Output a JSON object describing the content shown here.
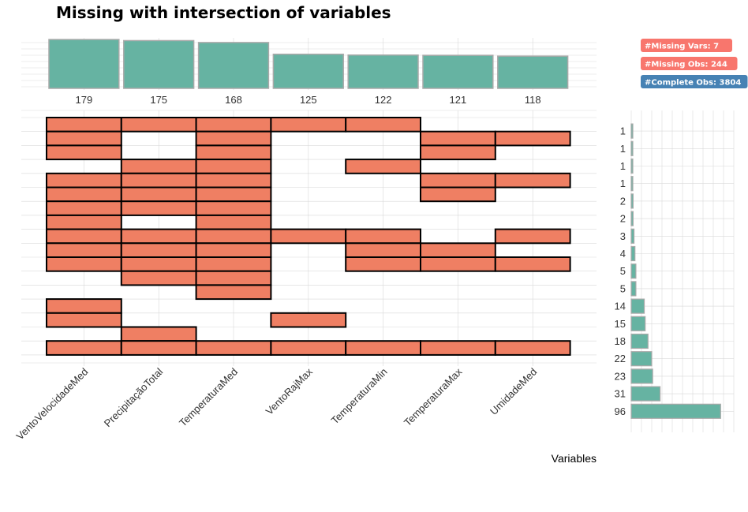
{
  "chart_data": {
    "type": "upset",
    "title": "Missing with intersection of variables",
    "xlabel": "Variables",
    "variables": [
      "VentoVelocidadeMed",
      "PrecipitaçãoTotal",
      "TemperaturaMed",
      "VentoRajMax",
      "TemperaturaMin",
      "TemperaturaMax",
      "UmidadeMed"
    ],
    "missing_counts": [
      179,
      175,
      168,
      125,
      122,
      121,
      118
    ],
    "intersections": [
      {
        "count": 1,
        "vars": [
          0,
          1,
          2,
          3,
          4
        ]
      },
      {
        "count": 1,
        "vars": [
          0,
          2,
          5,
          6
        ]
      },
      {
        "count": 1,
        "vars": [
          0,
          2,
          5
        ]
      },
      {
        "count": 1,
        "vars": [
          1,
          2,
          4
        ]
      },
      {
        "count": 2,
        "vars": [
          0,
          1,
          2,
          5,
          6
        ]
      },
      {
        "count": 2,
        "vars": [
          0,
          1,
          2,
          5
        ]
      },
      {
        "count": 3,
        "vars": [
          0,
          1,
          2
        ]
      },
      {
        "count": 4,
        "vars": [
          0,
          2
        ]
      },
      {
        "count": 5,
        "vars": [
          0,
          1,
          2,
          3,
          4,
          6
        ]
      },
      {
        "count": 5,
        "vars": [
          0,
          1,
          2,
          4,
          5
        ]
      },
      {
        "count": 14,
        "vars": [
          0,
          1,
          2,
          4,
          5,
          6
        ]
      },
      {
        "count": 15,
        "vars": [
          1,
          2
        ]
      },
      {
        "count": 18,
        "vars": [
          2
        ]
      },
      {
        "count": 22,
        "vars": [
          0
        ]
      },
      {
        "count": 23,
        "vars": [
          0,
          3
        ]
      },
      {
        "count": 31,
        "vars": [
          1
        ]
      },
      {
        "count": 96,
        "vars": [
          0,
          1,
          2,
          3,
          4,
          5,
          6
        ]
      }
    ],
    "badges": [
      {
        "label": "#Missing Vars: 7",
        "color": "#f8766d"
      },
      {
        "label": "#Missing Obs: 244",
        "color": "#f8766d"
      },
      {
        "label": "#Complete Obs: 3804",
        "color": "#4682b4"
      }
    ],
    "colors": {
      "missing": "#ef7f63",
      "bar": "#66b3a2",
      "bar_border": "#a9a9a9",
      "grid": "#d9d9d9"
    }
  }
}
